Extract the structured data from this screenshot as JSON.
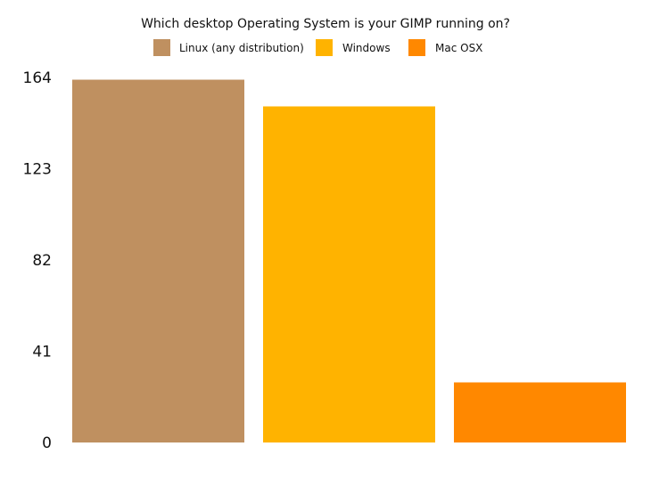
{
  "chart_data": {
    "type": "bar",
    "title": "Which desktop Operating System is your GIMP running on?",
    "xlabel": "",
    "ylabel": "",
    "categories": [
      "Linux (any distribution)",
      "Windows",
      "Mac OSX"
    ],
    "values": [
      163,
      151,
      27
    ],
    "colors": [
      "#bf9060",
      "#ffb300",
      "#ff8800"
    ],
    "yticks": [
      0,
      41,
      82,
      123,
      164
    ],
    "ylim": [
      0,
      164
    ],
    "grid": false,
    "legend_position": "top"
  }
}
